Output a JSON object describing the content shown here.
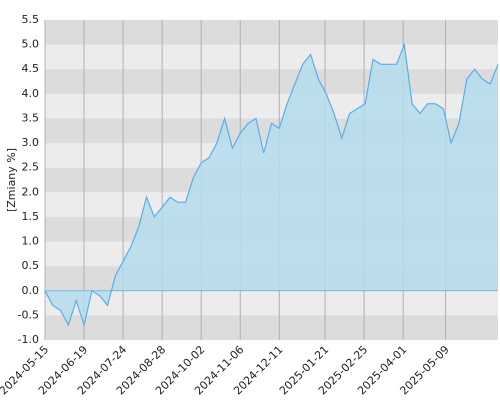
{
  "chart_data": {
    "type": "area",
    "y_label": "[Zmiany %]",
    "x": [
      "2024-05-15",
      "2024-05-22",
      "2024-05-29",
      "2024-06-05",
      "2024-06-12",
      "2024-06-19",
      "2024-06-26",
      "2024-07-03",
      "2024-07-10",
      "2024-07-17",
      "2024-07-24",
      "2024-07-31",
      "2024-08-07",
      "2024-08-14",
      "2024-08-21",
      "2024-08-28",
      "2024-09-04",
      "2024-09-11",
      "2024-09-18",
      "2024-09-25",
      "2024-10-02",
      "2024-10-09",
      "2024-10-16",
      "2024-10-23",
      "2024-10-30",
      "2024-11-06",
      "2024-11-13",
      "2024-11-20",
      "2024-11-27",
      "2024-12-04",
      "2024-12-11",
      "2024-12-18",
      "2024-12-25",
      "2025-01-01",
      "2025-01-08",
      "2025-01-15",
      "2025-01-22",
      "2025-01-29",
      "2025-02-05",
      "2025-02-12",
      "2025-02-19",
      "2025-02-26",
      "2025-03-05",
      "2025-03-12",
      "2025-03-19",
      "2025-03-26",
      "2025-04-02",
      "2025-04-09",
      "2025-04-16",
      "2025-04-23",
      "2025-04-30",
      "2025-05-07",
      "2025-05-14",
      "2025-05-21",
      "2025-05-28",
      "2025-06-04",
      "2025-06-11",
      "2025-06-18",
      "2025-06-25"
    ],
    "values": [
      0.0,
      -0.3,
      -0.4,
      -0.7,
      -0.2,
      -0.7,
      0.0,
      -0.1,
      -0.3,
      0.3,
      0.6,
      0.9,
      1.3,
      1.9,
      1.5,
      1.7,
      1.9,
      1.8,
      1.8,
      2.3,
      2.6,
      2.7,
      3.0,
      3.5,
      2.9,
      3.2,
      3.4,
      3.5,
      2.8,
      3.4,
      3.3,
      3.8,
      4.2,
      4.6,
      4.8,
      4.3,
      4.0,
      3.6,
      3.1,
      3.6,
      3.7,
      3.8,
      4.7,
      4.6,
      4.6,
      4.6,
      5.0,
      3.8,
      3.6,
      3.8,
      3.8,
      3.7,
      3.0,
      3.4,
      4.3,
      4.5,
      4.3,
      4.2,
      4.6
    ],
    "color": "#5aaee8",
    "fill": "#b5dcec",
    "xlim": [
      "2024-05-15",
      "2025-06-25"
    ],
    "xticks": [
      "2024-05-15",
      "2024-06-19",
      "2024-07-24",
      "2024-08-28",
      "2024-10-02",
      "2024-11-06",
      "2024-12-11",
      "2025-01-21",
      "2025-02-25",
      "2025-04-01",
      "2025-05-09"
    ],
    "ylim": [
      -1.0,
      5.5
    ],
    "yticks": [
      {
        "value": -1,
        "label": "-1.0"
      },
      -0.5,
      {
        "value": 0,
        "label": "0.0"
      },
      0.5,
      {
        "value": 1,
        "label": "1.0"
      },
      1.5,
      {
        "value": 2,
        "label": "2.0"
      },
      2.5,
      {
        "value": 3,
        "label": "3.0"
      },
      3.5,
      {
        "value": 4,
        "label": "4.0"
      },
      4.5,
      {
        "value": 5,
        "label": "5.0"
      },
      5.5
    ],
    "grid": true
  }
}
